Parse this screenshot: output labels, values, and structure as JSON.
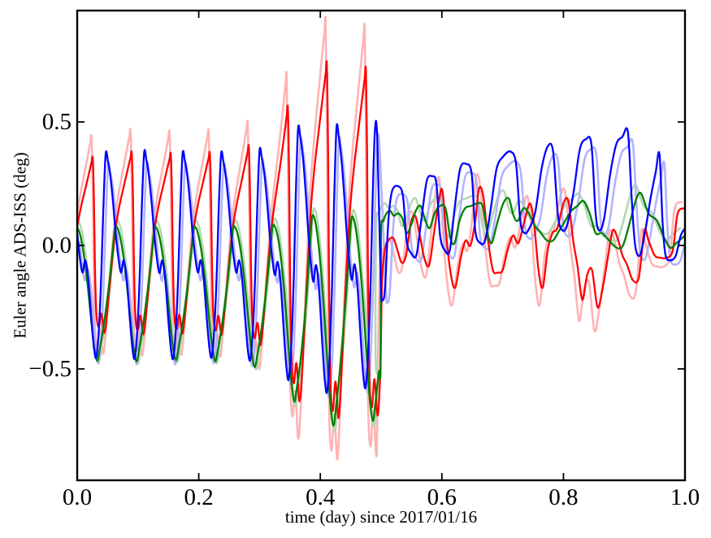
{
  "chart_data": {
    "type": "line",
    "title": "",
    "xlabel": "time (day) since 2017/01/16",
    "ylabel": "Euler angle ADS-ISS (deg)",
    "xlim": [
      0,
      1
    ],
    "ylim": [
      -0.951,
      0.951
    ],
    "grid": false,
    "legend": null,
    "axis_color": "#000000",
    "background": "#ffffff",
    "xticks": {
      "values": [
        0,
        0.2,
        0.4,
        0.6,
        0.8,
        1.0
      ],
      "labels": [
        "0.0",
        "0.2",
        "0.4",
        "0.6",
        "0.8",
        "1.0"
      ]
    },
    "yticks": {
      "values": [
        0.5,
        0,
        -0.5
      ],
      "labels": [
        "0.5",
        "0.0",
        "−0.5"
      ]
    },
    "series": [
      {
        "name": "red-pale",
        "color": "#ffb3b3",
        "width": 2.6,
        "derive": {
          "from": "red",
          "p1": {
            "dt": -0.002,
            "s": 1.24,
            "dv": 0
          },
          "p2": {
            "dt": -0.005,
            "s": 1.3,
            "dv": -0.02
          }
        }
      },
      {
        "name": "green-pale",
        "color": "#b3d9b3",
        "width": 2.6,
        "derive": {
          "from": "green",
          "p1": {
            "dt": 0.002,
            "s": 1.06,
            "dv": 0.02
          },
          "p2": {
            "dt": -0.008,
            "s": 1.0,
            "dv": 0.03
          }
        }
      },
      {
        "name": "blue-pale",
        "color": "#b3b3ff",
        "width": 2.6,
        "derive": {
          "from": "blue",
          "p1": {
            "dt": 0.004,
            "s": 0.97,
            "dv": -0.035
          },
          "p2": {
            "dt": 0.008,
            "s": 0.95,
            "dv": -0.02
          }
        }
      },
      {
        "name": "red",
        "color": "#ff0000",
        "width": 2.3,
        "p1": {
          "period": 0.0642,
          "tmax": 0.496,
          "template": [
            [
              0,
              0.1
            ],
            [
              0.1,
              0.2
            ],
            [
              0.2,
              0.28
            ],
            [
              0.3,
              0.36
            ],
            [
              0.365,
              0.41
            ],
            [
              0.4,
              0.43
            ],
            [
              0.43,
              0.22
            ],
            [
              0.455,
              -0.1
            ],
            [
              0.49,
              -0.33
            ],
            [
              0.55,
              -0.4
            ],
            [
              0.62,
              -0.33
            ],
            [
              0.7,
              -0.42
            ],
            [
              0.78,
              -0.3
            ],
            [
              0.86,
              -0.14
            ],
            [
              0.93,
              -0.01
            ],
            [
              1,
              0.1
            ]
          ],
          "mults": [
            0.78,
            0.87,
            0.85,
            0.85,
            0.87,
            1.0,
            1.72,
            1.64
          ]
        },
        "p2": {
          "points": [
            [
              0.4988,
              -0.5
            ],
            [
              0.5015,
              -0.15
            ],
            [
              0.506,
              -0.02
            ],
            [
              0.512,
              0.02
            ],
            [
              0.52,
              0.03
            ],
            [
              0.527,
              -0.02
            ],
            [
              0.534,
              -0.07
            ],
            [
              0.541,
              -0.04
            ],
            [
              0.549,
              0.09
            ],
            [
              0.556,
              0.12
            ],
            [
              0.563,
              0.05
            ],
            [
              0.571,
              -0.05
            ],
            [
              0.579,
              -0.08
            ],
            [
              0.587,
              0.05
            ],
            [
              0.595,
              0.18
            ],
            [
              0.601,
              0.22
            ],
            [
              0.608,
              0.02
            ],
            [
              0.615,
              -0.12
            ],
            [
              0.622,
              -0.17
            ],
            [
              0.631,
              -0.05
            ],
            [
              0.639,
              0.02
            ],
            [
              0.647,
              0.0
            ],
            [
              0.655,
              0.1
            ],
            [
              0.661,
              0.23
            ],
            [
              0.668,
              0.2
            ],
            [
              0.676,
              0.02
            ],
            [
              0.684,
              -0.1
            ],
            [
              0.692,
              -0.11
            ],
            [
              0.7,
              -0.1
            ],
            [
              0.708,
              -0.02
            ],
            [
              0.717,
              0.04
            ],
            [
              0.726,
              0.01
            ],
            [
              0.736,
              0.1
            ],
            [
              0.745,
              0.17
            ],
            [
              0.752,
              0.08
            ],
            [
              0.759,
              -0.1
            ],
            [
              0.766,
              -0.17
            ],
            [
              0.774,
              -0.02
            ],
            [
              0.782,
              0.05
            ],
            [
              0.79,
              0.07
            ],
            [
              0.8,
              0.17
            ],
            [
              0.808,
              0.18
            ],
            [
              0.816,
              0.02
            ],
            [
              0.823,
              -0.08
            ],
            [
              0.831,
              -0.22
            ],
            [
              0.839,
              -0.12
            ],
            [
              0.847,
              -0.1
            ],
            [
              0.856,
              -0.25
            ],
            [
              0.864,
              -0.18
            ],
            [
              0.873,
              -0.05
            ],
            [
              0.881,
              0.06
            ],
            [
              0.889,
              0.03
            ],
            [
              0.897,
              -0.04
            ],
            [
              0.905,
              -0.08
            ],
            [
              0.914,
              -0.14
            ],
            [
              0.924,
              -0.13
            ],
            [
              0.933,
              0.06
            ],
            [
              0.94,
              0.02
            ],
            [
              0.95,
              -0.04
            ],
            [
              0.96,
              -0.05
            ],
            [
              0.97,
              -0.05
            ],
            [
              0.98,
              -0.02
            ],
            [
              0.988,
              0.13
            ],
            [
              1,
              0.15
            ]
          ]
        }
      },
      {
        "name": "green",
        "color": "#008000",
        "width": 2.3,
        "p1": {
          "period": 0.0648,
          "tmax": 0.4985,
          "template": [
            [
              0,
              0.08
            ],
            [
              0.07,
              0.05
            ],
            [
              0.15,
              -0.02
            ],
            [
              0.25,
              -0.15
            ],
            [
              0.34,
              -0.3
            ],
            [
              0.43,
              -0.44
            ],
            [
              0.51,
              -0.5
            ],
            [
              0.58,
              -0.44
            ],
            [
              0.66,
              -0.36
            ],
            [
              0.74,
              -0.26
            ],
            [
              0.82,
              -0.15
            ],
            [
              0.9,
              -0.02
            ],
            [
              0.955,
              0.07
            ],
            [
              1,
              0.08
            ]
          ],
          "mults": [
            0.92,
            0.95,
            0.93,
            0.93,
            0.95,
            1.02,
            1.5,
            1.42
          ]
        },
        "p2": {
          "points": [
            [
              0.4992,
              -0.5
            ],
            [
              0.4998,
              0.04
            ],
            [
              0.504,
              0.1
            ],
            [
              0.509,
              0.13
            ],
            [
              0.515,
              0.14
            ],
            [
              0.521,
              0.12
            ],
            [
              0.528,
              0.13
            ],
            [
              0.535,
              0.11
            ],
            [
              0.542,
              0.05
            ],
            [
              0.549,
              0.08
            ],
            [
              0.557,
              0.14
            ],
            [
              0.565,
              0.16
            ],
            [
              0.573,
              0.1
            ],
            [
              0.58,
              0.07
            ],
            [
              0.588,
              0.13
            ],
            [
              0.597,
              0.16
            ],
            [
              0.606,
              0.15
            ],
            [
              0.614,
              0.03
            ],
            [
              0.621,
              0.01
            ],
            [
              0.629,
              0.1
            ],
            [
              0.638,
              0.15
            ],
            [
              0.648,
              0.16
            ],
            [
              0.658,
              0.17
            ],
            [
              0.667,
              0.16
            ],
            [
              0.675,
              0.05
            ],
            [
              0.682,
              0.01
            ],
            [
              0.691,
              0.09
            ],
            [
              0.701,
              0.17
            ],
            [
              0.71,
              0.19
            ],
            [
              0.718,
              0.12
            ],
            [
              0.725,
              0.1
            ],
            [
              0.734,
              0.15
            ],
            [
              0.743,
              0.13
            ],
            [
              0.753,
              0.08
            ],
            [
              0.763,
              0.05
            ],
            [
              0.773,
              0.02
            ],
            [
              0.783,
              0.02
            ],
            [
              0.793,
              0.06
            ],
            [
              0.803,
              0.1
            ],
            [
              0.813,
              0.14
            ],
            [
              0.823,
              0.16
            ],
            [
              0.833,
              0.18
            ],
            [
              0.843,
              0.13
            ],
            [
              0.853,
              0.05
            ],
            [
              0.863,
              0.05
            ],
            [
              0.875,
              0.02
            ],
            [
              0.888,
              -0.01
            ],
            [
              0.898,
              0.0
            ],
            [
              0.91,
              0.1
            ],
            [
              0.92,
              0.19
            ],
            [
              0.928,
              0.21
            ],
            [
              0.94,
              0.13
            ],
            [
              0.954,
              0.1
            ],
            [
              0.966,
              0.03
            ],
            [
              0.976,
              -0.01
            ],
            [
              0.986,
              0.01
            ],
            [
              1,
              0.04
            ]
          ]
        }
      },
      {
        "name": "blue",
        "color": "#0000ff",
        "width": 2.3,
        "p1": {
          "period": 0.0633,
          "tmax": 0.4975,
          "template": [
            [
              0,
              0.05
            ],
            [
              0.07,
              -0.05
            ],
            [
              0.14,
              -0.11
            ],
            [
              0.21,
              -0.06
            ],
            [
              0.29,
              -0.14
            ],
            [
              0.37,
              -0.3
            ],
            [
              0.44,
              -0.42
            ],
            [
              0.5,
              -0.45
            ],
            [
              0.57,
              -0.32
            ],
            [
              0.63,
              -0.1
            ],
            [
              0.68,
              0.15
            ],
            [
              0.74,
              0.37
            ],
            [
              0.8,
              0.34
            ],
            [
              0.87,
              0.27
            ],
            [
              0.94,
              0.16
            ],
            [
              1,
              0.05
            ]
          ],
          "mults": [
            1,
            1,
            1.02,
            1,
            1,
            1.05,
            1.35,
            1.27
          ]
        },
        "p2": {
          "points": [
            [
              0.4995,
              -0.15
            ],
            [
              0.5025,
              -0.22
            ],
            [
              0.5065,
              -0.17
            ],
            [
              0.512,
              0.1
            ],
            [
              0.518,
              0.22
            ],
            [
              0.528,
              0.24
            ],
            [
              0.536,
              0.2
            ],
            [
              0.542,
              0.02
            ],
            [
              0.549,
              -0.03
            ],
            [
              0.558,
              -0.04
            ],
            [
              0.566,
              0.1
            ],
            [
              0.575,
              0.26
            ],
            [
              0.584,
              0.28
            ],
            [
              0.591,
              0.25
            ],
            [
              0.597,
              0.04
            ],
            [
              0.605,
              -0.02
            ],
            [
              0.613,
              -0.02
            ],
            [
              0.621,
              0.15
            ],
            [
              0.63,
              0.31
            ],
            [
              0.64,
              0.33
            ],
            [
              0.649,
              0.29
            ],
            [
              0.655,
              0.06
            ],
            [
              0.663,
              0.01
            ],
            [
              0.671,
              0.02
            ],
            [
              0.68,
              0.14
            ],
            [
              0.69,
              0.31
            ],
            [
              0.701,
              0.36
            ],
            [
              0.713,
              0.38
            ],
            [
              0.722,
              0.33
            ],
            [
              0.729,
              0.1
            ],
            [
              0.736,
              0.05
            ],
            [
              0.744,
              0.07
            ],
            [
              0.754,
              0.14
            ],
            [
              0.764,
              0.31
            ],
            [
              0.774,
              0.4
            ],
            [
              0.783,
              0.38
            ],
            [
              0.791,
              0.12
            ],
            [
              0.799,
              0.06
            ],
            [
              0.807,
              0.09
            ],
            [
              0.817,
              0.22
            ],
            [
              0.827,
              0.39
            ],
            [
              0.837,
              0.43
            ],
            [
              0.846,
              0.41
            ],
            [
              0.853,
              0.13
            ],
            [
              0.859,
              0.06
            ],
            [
              0.867,
              0.11
            ],
            [
              0.877,
              0.29
            ],
            [
              0.887,
              0.41
            ],
            [
              0.897,
              0.44
            ],
            [
              0.906,
              0.46
            ],
            [
              0.912,
              0.2
            ],
            [
              0.918,
              0.0
            ],
            [
              0.926,
              -0.04
            ],
            [
              0.934,
              0.05
            ],
            [
              0.944,
              0.2
            ],
            [
              0.952,
              0.3
            ],
            [
              0.958,
              0.37
            ],
            [
              0.963,
              0.1
            ],
            [
              0.968,
              -0.04
            ],
            [
              0.977,
              -0.06
            ],
            [
              0.985,
              -0.04
            ],
            [
              0.993,
              0.04
            ],
            [
              1,
              0.07
            ]
          ]
        }
      }
    ]
  }
}
